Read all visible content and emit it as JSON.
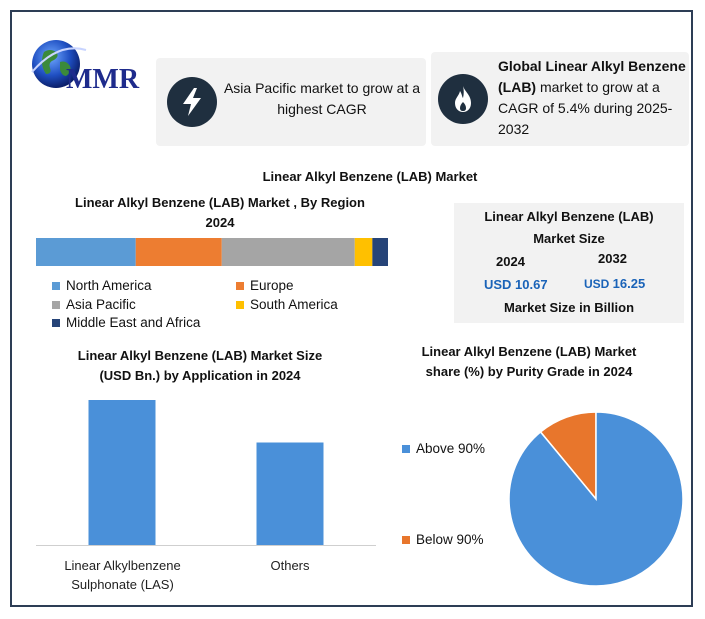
{
  "logo": {
    "text": "MMR"
  },
  "card1": {
    "text": "Asia Pacific market to grow at a highest CAGR",
    "icon": "lightning-bolt-icon"
  },
  "card2": {
    "bold": "Global Linear Alkyl Benzene (LAB)",
    "rest": " market to grow at a CAGR of 5.4% during 2025-2032",
    "icon": "flame-icon"
  },
  "main_title": "Linear Alkyl Benzene (LAB) Market",
  "region": {
    "title_line1": "Linear Alkyl Benzene (LAB) Market , By Region",
    "title_line2": "2024"
  },
  "market_size": {
    "title_line1": "Linear Alkyl Benzene (LAB)",
    "title_line2": "Market Size",
    "year1": "2024",
    "year2": "2032",
    "value1": "USD 10.67",
    "value2_prefix": "USD ",
    "value2": "16.25",
    "footer": "Market Size in Billion"
  },
  "application": {
    "title_line1": "Linear Alkyl Benzene (LAB) Market Size",
    "title_line2": "(USD Bn.) by Application in 2024",
    "tick1_line1": "Linear Alkylbenzene",
    "tick1_line2": "Sulphonate (LAS)",
    "tick2": "Others"
  },
  "purity": {
    "title_line1": "Linear Alkyl Benzene (LAB) Market",
    "title_line2": "share (%) by Purity Grade in 2024",
    "legend1": "Above 90%",
    "legend2": "Below 90%"
  },
  "chart_data": [
    {
      "type": "bar",
      "orientation": "horizontal-stacked",
      "title": "Linear Alkyl Benzene (LAB) Market , By Region 2024",
      "series": [
        {
          "name": "North America",
          "value": 25.5,
          "color": "#5b9bd5"
        },
        {
          "name": "Europe",
          "value": 22.0,
          "color": "#ed7d31"
        },
        {
          "name": "Asia Pacific",
          "value": 34.0,
          "color": "#a5a5a5"
        },
        {
          "name": "South America",
          "value": 4.5,
          "color": "#ffc000"
        },
        {
          "name": "Middle East and Africa",
          "value": 4.0,
          "color": "#264478"
        }
      ],
      "unit": "percent share"
    },
    {
      "type": "bar",
      "title": "Linear Alkyl Benzene (LAB) Market Size (USD Bn.) by Application in 2024",
      "categories": [
        "Linear Alkylbenzene Sulphonate (LAS)",
        "Others"
      ],
      "values": [
        6.1,
        4.1
      ],
      "ylim": [
        0,
        8
      ],
      "color": "#4a90d9"
    },
    {
      "type": "pie",
      "title": "Linear Alkyl Benzene (LAB) Market share (%) by Purity Grade in 2024",
      "categories": [
        "Above 90%",
        "Below 90%"
      ],
      "values": [
        89,
        11
      ],
      "colors": [
        "#4a90d9",
        "#e8762c"
      ]
    }
  ]
}
